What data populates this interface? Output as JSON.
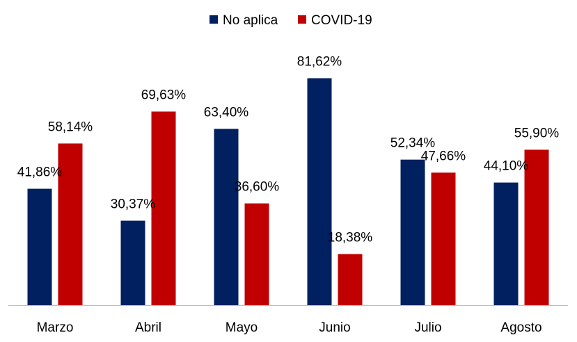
{
  "chart_data": {
    "type": "bar",
    "title": "",
    "xlabel": "",
    "ylabel": "",
    "categories": [
      "Marzo",
      "Abril",
      "Mayo",
      "Junio",
      "Julio",
      "Agosto"
    ],
    "series": [
      {
        "name": "No aplica",
        "color": "#002060",
        "values": [
          41.86,
          30.37,
          63.4,
          81.62,
          52.34,
          44.1
        ],
        "labels": [
          "41,86%",
          "30,37%",
          "63,40%",
          "81,62%",
          "52,34%",
          "44,10%"
        ]
      },
      {
        "name": "COVID-19",
        "color": "#C00000",
        "values": [
          58.14,
          69.63,
          36.6,
          18.38,
          47.66,
          55.9
        ],
        "labels": [
          "58,14%",
          "69,63%",
          "36,60%",
          "18,38%",
          "47,66%",
          "55,90%"
        ]
      }
    ],
    "ylim": [
      0,
      100
    ],
    "grid": false,
    "legend_position": "top-center",
    "axis_color": "#BFBFBF"
  }
}
